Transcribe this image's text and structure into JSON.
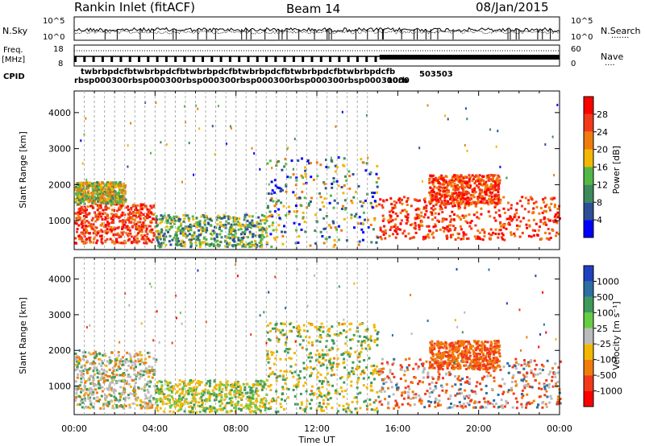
{
  "header": {
    "station": "Rankin Inlet (fitACF)",
    "beam": "Beam 14",
    "date": "08/Jan/2015"
  },
  "strips": {
    "nsky": {
      "label": "N.Sky",
      "top": "10^5",
      "bottom": "10^0"
    },
    "nsearch": {
      "label": "N.Search",
      "top": "10^5",
      "bottom": "10^0"
    },
    "freq": {
      "label_line1": "Freq.",
      "label_line2": "[MHz]",
      "top": "18",
      "bottom": "8"
    },
    "nave": {
      "label": "Nave",
      "top": "60",
      "bottom": "0"
    },
    "cpid": {
      "label": "CPID",
      "text_row1": "twbrb",
      "text_row2": "rbsp...",
      "tail_row1": "503503",
      "tail_row2": "1000"
    }
  },
  "chart_data": [
    {
      "type": "heatmap",
      "name": "Power",
      "ylabel": "Slant Range [km]",
      "yticks": [
        "1000",
        "2000",
        "3000",
        "4000"
      ],
      "ylim": [
        200,
        4600
      ],
      "xlim_hours": [
        0,
        24
      ],
      "colorbar": {
        "label": "Power [dB]",
        "ticks": [
          "4",
          "8",
          "12",
          "16",
          "20",
          "24",
          "28"
        ],
        "colors": [
          "#0000ff",
          "#2c4f96",
          "#3d8a5a",
          "#52b846",
          "#f2b705",
          "#f07c0b",
          "#f23a1a",
          "#ff0000"
        ]
      },
      "regions": [
        {
          "x": [
            0.0,
            4.0
          ],
          "y": [
            400,
            1500
          ],
          "level": "high"
        },
        {
          "x": [
            0.0,
            2.5
          ],
          "y": [
            1500,
            2100
          ],
          "level": "mid"
        },
        {
          "x": [
            4.0,
            9.5
          ],
          "y": [
            300,
            1200
          ],
          "level": "low"
        },
        {
          "x": [
            9.5,
            15.0
          ],
          "y": [
            300,
            2800
          ],
          "level": "scattered"
        },
        {
          "x": [
            15.0,
            24.0
          ],
          "y": [
            500,
            1700
          ],
          "level": "high"
        },
        {
          "x": [
            17.5,
            21.0
          ],
          "y": [
            1500,
            2300
          ],
          "level": "high"
        }
      ]
    },
    {
      "type": "heatmap",
      "name": "Velocity",
      "ylabel": "Slant Range [km]",
      "xlabel": "Time UT",
      "yticks": [
        "1000",
        "2000",
        "3000",
        "4000"
      ],
      "xticks": [
        "00:00",
        "04:00",
        "08:00",
        "12:00",
        "16:00",
        "20:00",
        "00:00"
      ],
      "ylim": [
        200,
        4600
      ],
      "xlim_hours": [
        0,
        24
      ],
      "colorbar": {
        "label": "Velocity [m s⁻¹]",
        "ticks": [
          "1000",
          "500",
          "100",
          "25",
          "-25",
          "-100",
          "-500",
          "-1000"
        ],
        "colors": [
          "#2040c0",
          "#2c6fa0",
          "#3d9a5a",
          "#66cc44",
          "#bbbbbb",
          "#f2b705",
          "#f07c0b",
          "#f23a1a",
          "#ff0000"
        ]
      },
      "regions": [
        {
          "x": [
            0.0,
            4.0
          ],
          "y": [
            400,
            2000
          ],
          "level": "mixed-grey-orange"
        },
        {
          "x": [
            4.0,
            9.5
          ],
          "y": [
            300,
            1200
          ],
          "level": "green-orange"
        },
        {
          "x": [
            9.5,
            15.0
          ],
          "y": [
            300,
            2800
          ],
          "level": "orange-green"
        },
        {
          "x": [
            15.0,
            24.0
          ],
          "y": [
            400,
            1800
          ],
          "level": "orange-grey"
        },
        {
          "x": [
            17.5,
            21.0
          ],
          "y": [
            1500,
            2300
          ],
          "level": "orange"
        }
      ]
    }
  ]
}
